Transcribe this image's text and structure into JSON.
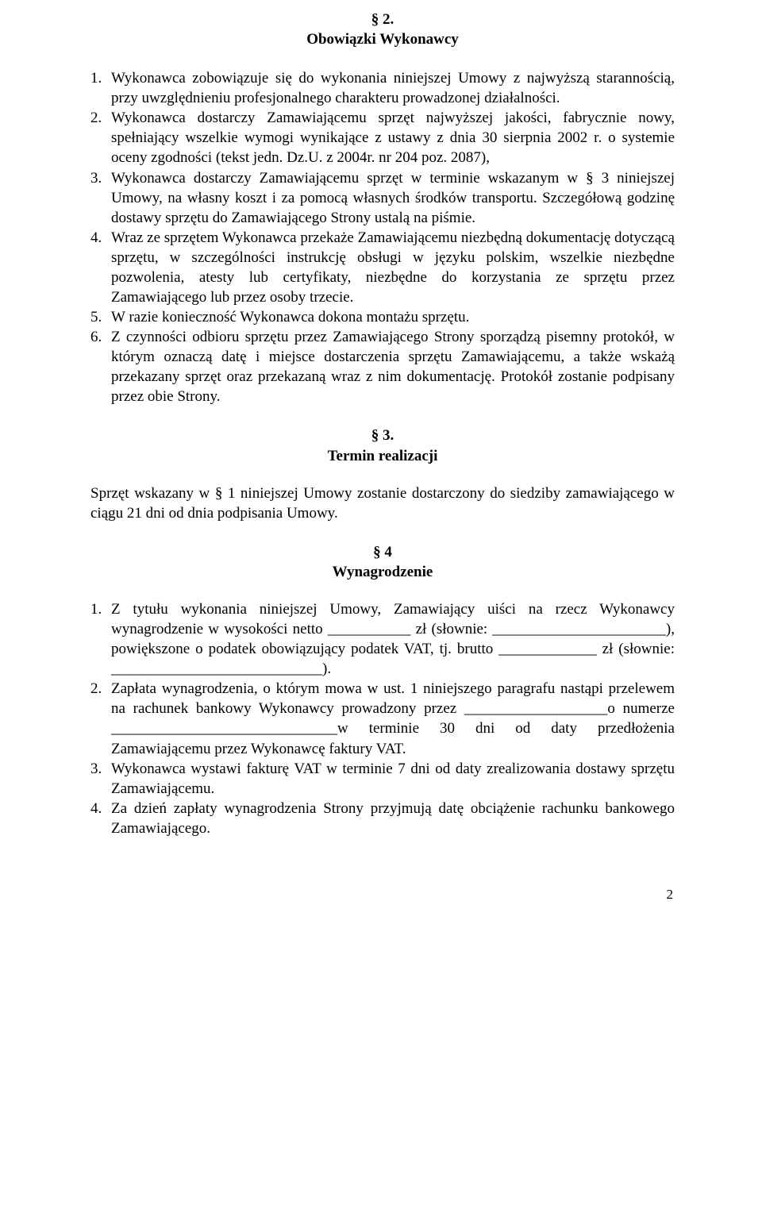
{
  "sec2": {
    "num": "§ 2.",
    "title": "Obowiązki Wykonawcy",
    "items": [
      "Wykonawca zobowiązuje się do wykonania niniejszej Umowy z najwyższą starannością, przy uwzględnieniu profesjonalnego charakteru prowadzonej działalności.",
      "Wykonawca dostarczy Zamawiającemu sprzęt najwyższej jakości, fabrycznie nowy, spełniający wszelkie wymogi wynikające z ustawy z dnia 30 sierpnia 2002 r. o systemie oceny zgodności (tekst jedn. Dz.U. z 2004r. nr 204 poz. 2087),",
      "Wykonawca dostarczy Zamawiającemu sprzęt w terminie wskazanym w § 3 niniejszej Umowy, na własny koszt i za pomocą własnych środków transportu. Szczegółową godzinę dostawy sprzętu do Zamawiającego Strony ustalą na piśmie.",
      "Wraz ze sprzętem Wykonawca przekaże Zamawiającemu niezbędną dokumentację dotyczącą sprzętu, w szczególności instrukcję obsługi w języku polskim, wszelkie niezbędne pozwolenia, atesty lub certyfikaty, niezbędne do korzystania ze sprzętu przez Zamawiającego lub przez osoby trzecie.",
      "W razie konieczność Wykonawca dokona montażu sprzętu.",
      "Z czynności odbioru sprzętu przez Zamawiającego Strony sporządzą pisemny protokół, w którym oznaczą datę i miejsce dostarczenia sprzętu Zamawiającemu, a także wskażą przekazany sprzęt oraz przekazaną wraz z nim dokumentację. Protokół zostanie podpisany przez obie Strony."
    ]
  },
  "sec3": {
    "num": "§ 3.",
    "title": "Termin realizacji",
    "body": "Sprzęt wskazany w § 1 niniejszej Umowy zostanie dostarczony do siedziby zamawiającego w ciągu 21 dni od dnia podpisania Umowy."
  },
  "sec4": {
    "num": "§ 4",
    "title": "Wynagrodzenie",
    "items": [
      "Z tytułu wykonania niniejszej Umowy, Zamawiający uiści na rzecz Wykonawcy wynagrodzenie w wysokości netto ___________ zł (słownie: _______________________), powiększone o podatek obowiązujący podatek VAT, tj. brutto _____________ zł (słownie: ____________________________).",
      "Zapłata wynagrodzenia, o którym mowa w ust. 1 niniejszego paragrafu nastąpi przelewem na rachunek bankowy Wykonawcy prowadzony przez ___________________o numerze ______________________________w terminie 30 dni od daty przedłożenia Zamawiającemu przez Wykonawcę faktury VAT.",
      "Wykonawca wystawi fakturę VAT w terminie 7 dni od daty zrealizowania dostawy sprzętu Zamawiającemu.",
      "Za dzień zapłaty wynagrodzenia Strony przyjmują datę obciążenie rachunku bankowego Zamawiającego."
    ]
  },
  "page_number": "2"
}
